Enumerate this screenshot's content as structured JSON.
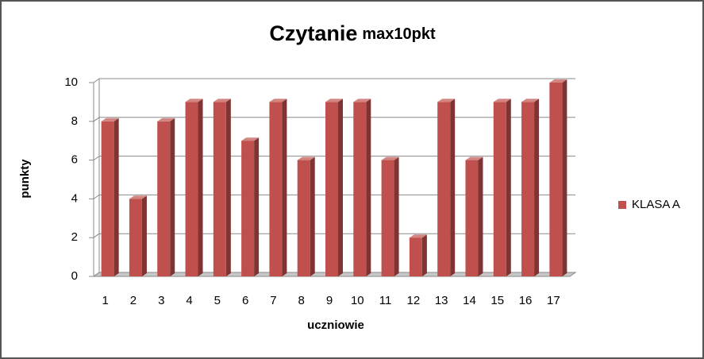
{
  "chart_data": {
    "type": "bar3d",
    "title": "Czytanie",
    "subtitle": "max10pkt",
    "x_label": "uczniowie",
    "y_label": "punkty",
    "categories": [
      "1",
      "2",
      "3",
      "4",
      "5",
      "6",
      "7",
      "8",
      "9",
      "10",
      "11",
      "12",
      "13",
      "14",
      "15",
      "16",
      "17"
    ],
    "series": [
      {
        "name": "KLASA A",
        "color": "#c0504d",
        "values": [
          8,
          4,
          8,
          9,
          9,
          7,
          9,
          6,
          9,
          9,
          6,
          2,
          9,
          6,
          9,
          9,
          10
        ]
      }
    ],
    "ylim": [
      0,
      10
    ],
    "yticks": [
      0,
      2,
      4,
      6,
      8,
      10
    ],
    "grid": true,
    "legend": "right"
  }
}
